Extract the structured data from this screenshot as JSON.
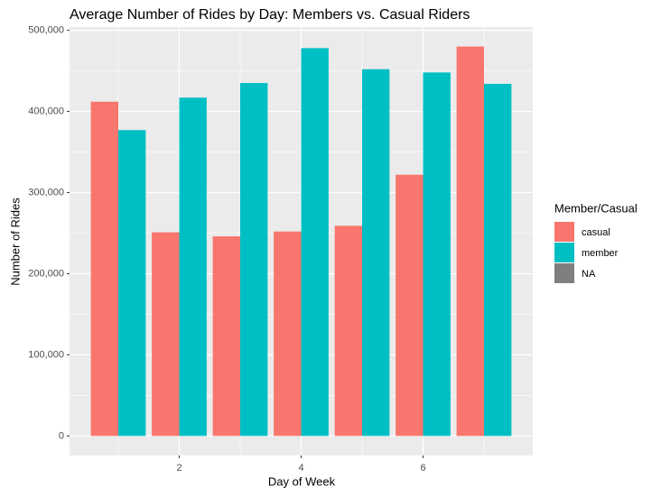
{
  "chart_data": {
    "type": "bar",
    "title": "Average Number of Rides by Day: Members vs. Casual Riders",
    "x_label": "Day of Week",
    "y_label": "Number of Rides",
    "x": [
      1,
      2,
      3,
      4,
      5,
      6,
      7
    ],
    "series": [
      {
        "name": "casual",
        "color": "#f8766d",
        "values": [
          412000,
          251000,
          246000,
          252000,
          259000,
          322000,
          480000
        ]
      },
      {
        "name": "member",
        "color": "#00bfc4",
        "values": [
          377000,
          417000,
          435000,
          478000,
          452000,
          448000,
          434000
        ]
      },
      {
        "name": "NA",
        "color": "#7f7f7f",
        "values": [
          null,
          null,
          null,
          null,
          null,
          null,
          null
        ]
      }
    ],
    "legend_title": "Member/Casual",
    "xlim": [
      0.2,
      7.8
    ],
    "xticks": [
      2,
      4,
      6
    ],
    "ylim": [
      -24000,
      504000
    ],
    "yticks": [
      0,
      {
        "value": 100000,
        "label": "100,000"
      },
      {
        "value": 200000,
        "label": "200,000"
      },
      {
        "value": 300000,
        "label": "300,000"
      },
      {
        "value": 400000,
        "label": "400,000"
      },
      {
        "value": 500000,
        "label": "500,000"
      }
    ],
    "grid": true,
    "legend_position": "right"
  }
}
